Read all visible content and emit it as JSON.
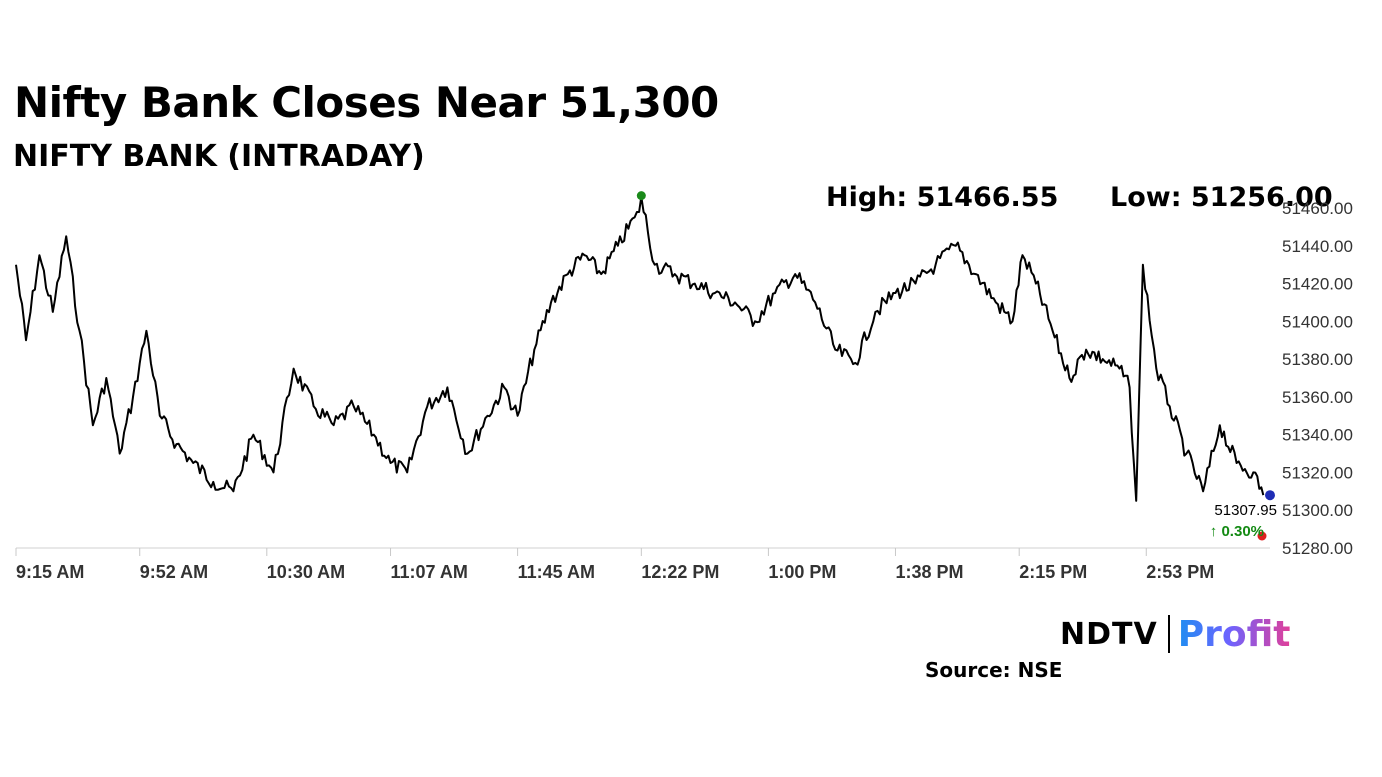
{
  "headline": "Nifty Bank Closes Near 51,300",
  "subheadline": "NIFTY BANK (INTRADAY)",
  "stats": {
    "high": "High: 51466.55",
    "low": "Low: 51256.00"
  },
  "source": "Source: NSE",
  "brand": {
    "ndtv": "NDTV",
    "profit": "Profit"
  },
  "chart_data": {
    "type": "line",
    "title": "NIFTY BANK (INTRADAY)",
    "xlabel": "",
    "ylabel": "",
    "ylim": [
      51280,
      51460
    ],
    "y_ticks": [
      "51460.00",
      "51440.00",
      "51420.00",
      "51400.00",
      "51380.00",
      "51360.00",
      "51340.00",
      "51320.00",
      "51300.00",
      "51280.00"
    ],
    "x_ticks": [
      "9:15 AM",
      "9:52 AM",
      "10:30 AM",
      "11:07 AM",
      "11:45 AM",
      "12:22 PM",
      "1:00 PM",
      "1:38 PM",
      "2:15 PM",
      "2:53 PM"
    ],
    "grid": false,
    "line_color": "#000000",
    "series": [
      {
        "x": [
          "9:15 AM",
          "9:18 AM",
          "9:22 AM",
          "9:26 AM",
          "9:30 AM",
          "9:34 AM",
          "9:38 AM",
          "9:42 AM",
          "9:46 AM",
          "9:50 AM",
          "9:54 AM",
          "9:58 AM",
          "10:03 AM",
          "10:08 AM",
          "10:14 AM",
          "10:20 AM",
          "10:26 AM",
          "10:32 AM",
          "10:38 AM",
          "10:44 AM",
          "10:50 AM",
          "10:56 AM",
          "11:02 AM",
          "11:07 AM",
          "11:12 AM",
          "11:18 AM",
          "11:24 AM",
          "11:30 AM",
          "11:36 AM",
          "11:41 AM",
          "11:45 AM",
          "11:50 AM",
          "11:55 AM",
          "12:00 PM",
          "12:05 PM",
          "12:10 PM",
          "12:15 PM",
          "12:20 PM",
          "12:22 PM",
          "12:26 PM",
          "12:32 PM",
          "12:38 PM",
          "12:44 PM",
          "12:50 PM",
          "12:56 PM",
          "1:02 PM",
          "1:08 PM",
          "1:14 PM",
          "1:20 PM",
          "1:26 PM",
          "1:32 PM",
          "1:38 PM",
          "1:44 PM",
          "1:50 PM",
          "1:56 PM",
          "2:02 PM",
          "2:08 PM",
          "2:13 PM",
          "2:16 PM",
          "2:20 PM",
          "2:25 PM",
          "2:30 PM",
          "2:35 PM",
          "2:40 PM",
          "2:45 PM",
          "2:48 PM",
          "2:50 PM",
          "2:52 PM",
          "2:56 PM",
          "3:00 PM",
          "3:05 PM",
          "3:10 PM",
          "3:15 PM",
          "3:20 PM",
          "3:25 PM",
          "3:28 PM"
        ],
        "values": [
          51430,
          51390,
          51435,
          51405,
          51445,
          51395,
          51345,
          51370,
          51330,
          51360,
          51395,
          51350,
          51335,
          51325,
          51315,
          51310,
          51340,
          51320,
          51375,
          51355,
          51345,
          51355,
          51340,
          51325,
          51320,
          51355,
          51365,
          51330,
          51350,
          51365,
          51350,
          51385,
          51410,
          51425,
          51435,
          51425,
          51440,
          51455,
          51466,
          51430,
          51425,
          51420,
          51415,
          51410,
          51400,
          51415,
          51425,
          51410,
          51385,
          51378,
          51405,
          51415,
          51420,
          51430,
          51440,
          51425,
          51410,
          51400,
          51435,
          51420,
          51395,
          51370,
          51385,
          51380,
          51375,
          51365,
          51305,
          51430,
          51375,
          51355,
          51330,
          51310,
          51345,
          51325,
          51320,
          51308
        ]
      }
    ],
    "markers": {
      "high": "51466.55",
      "low": "51256.00",
      "last": "51307.95",
      "change": "↑ 0.30%"
    },
    "colors": {
      "high_marker": "#1a8a1a",
      "low_marker": "#e02020",
      "last_marker": "#1f2db5",
      "change_text": "#138a13"
    }
  }
}
